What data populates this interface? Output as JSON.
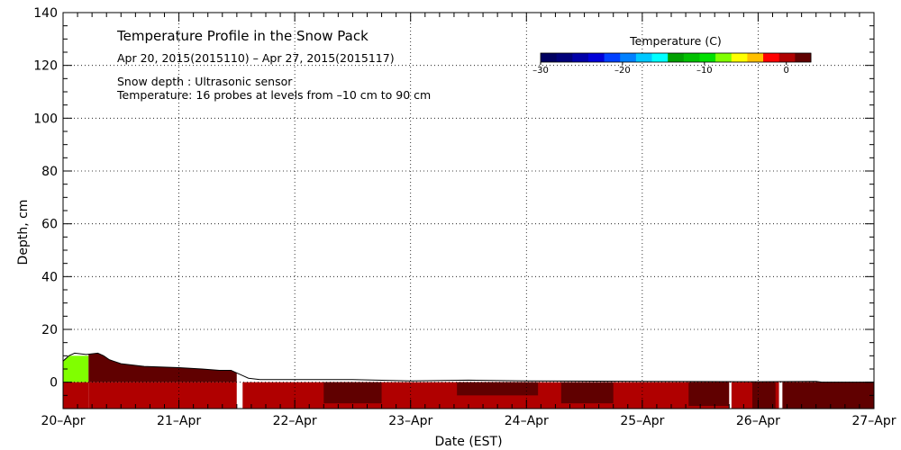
{
  "chart_data": {
    "type": "heatmap",
    "title": "Temperature Profile in the Snow Pack",
    "subtitle": "Apr 20, 2015(2015110) – Apr 27, 2015(2015117)",
    "notes": [
      "Snow depth : Ultrasonic sensor",
      "Temperature: 16 probes at levels from –10 cm to 90 cm"
    ],
    "xlabel": "Date (EST)",
    "ylabel": "Depth, cm",
    "x_ticks": [
      "20–Apr",
      "21–Apr",
      "22–Apr",
      "23–Apr",
      "24–Apr",
      "25–Apr",
      "26–Apr",
      "27–Apr"
    ],
    "xlim_days": [
      0,
      7
    ],
    "ylim": [
      -10,
      140
    ],
    "y_ticks": [
      0,
      20,
      40,
      60,
      80,
      100,
      120,
      140
    ],
    "grid": true,
    "colorbar": {
      "label": "Temperature (C)",
      "range": [
        -30,
        3
      ],
      "tick_values": [
        -30,
        -20,
        -10,
        0
      ],
      "tick_labels": [
        "–30",
        "–20",
        "–10",
        "0"
      ],
      "colors": [
        "#000060",
        "#00007a",
        "#0000a8",
        "#0000d8",
        "#0040ff",
        "#0080ff",
        "#00c8ff",
        "#00ffff",
        "#00a000",
        "#00c000",
        "#00e000",
        "#80ff00",
        "#ffff00",
        "#ffc000",
        "#ff0000",
        "#b00000",
        "#600000"
      ]
    },
    "snow_depth_cm": {
      "x": [
        0,
        0.05,
        0.1,
        0.2,
        0.3,
        0.35,
        0.4,
        0.5,
        0.7,
        1.0,
        1.2,
        1.35,
        1.45,
        1.5,
        1.55,
        1.6,
        1.7,
        1.8,
        2.0,
        2.5,
        3.0,
        3.5,
        4.0,
        5.0,
        6.0,
        6.5,
        6.55,
        7.0
      ],
      "y": [
        8,
        10,
        11,
        10.5,
        11,
        10,
        8.5,
        7,
        6,
        5.5,
        5,
        4.5,
        4.5,
        3.5,
        2.5,
        1.5,
        1,
        1,
        1,
        1,
        0.5,
        0.8,
        0.5,
        0.3,
        0.2,
        0.3,
        0,
        0
      ]
    },
    "temperature_regions": [
      {
        "x0": 0,
        "x1": 0.22,
        "y0": 0,
        "y1": 10,
        "temp": -7
      },
      {
        "x0": 0,
        "x1": 0.22,
        "y0": -10,
        "y1": 0,
        "temp": 1
      },
      {
        "x0": 0.22,
        "x1": 1.5,
        "y0": 0,
        "y1": 11,
        "temp": 2
      },
      {
        "x0": 0.22,
        "x1": 1.5,
        "y0": -10,
        "y1": 0,
        "temp": 1
      },
      {
        "x0": 1.5,
        "x1": 1.55,
        "y0": -10,
        "y1": 5,
        "temp": null
      },
      {
        "x0": 1.55,
        "x1": 7.0,
        "y0": -10,
        "y1": 0,
        "temp": 1
      },
      {
        "x0": 2.25,
        "x1": 2.75,
        "y0": -8,
        "y1": 0,
        "temp": 2
      },
      {
        "x0": 3.4,
        "x1": 4.1,
        "y0": -5,
        "y1": 0,
        "temp": 2
      },
      {
        "x0": 4.3,
        "x1": 4.75,
        "y0": -8,
        "y1": 0,
        "temp": 2
      },
      {
        "x0": 5.4,
        "x1": 5.75,
        "y0": -9,
        "y1": 0,
        "temp": 2
      },
      {
        "x0": 5.75,
        "x1": 5.77,
        "y0": -10,
        "y1": 0,
        "temp": null
      },
      {
        "x0": 5.95,
        "x1": 6.15,
        "y0": -10,
        "y1": 0,
        "temp": 2
      },
      {
        "x0": 6.18,
        "x1": 6.21,
        "y0": -10,
        "y1": 0,
        "temp": null
      },
      {
        "x0": 6.21,
        "x1": 7.0,
        "y0": -10,
        "y1": 0,
        "temp": 2
      }
    ]
  }
}
